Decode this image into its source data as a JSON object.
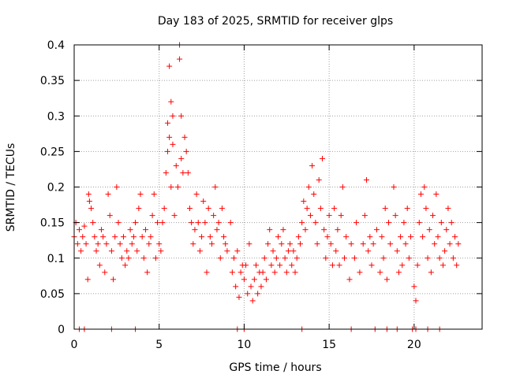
{
  "chart_data": {
    "type": "scatter",
    "title": "Day 183 of 2025, SRMTID for receiver glps",
    "xlabel": "GPS time / hours",
    "ylabel": "SRMTID / TECUs",
    "xlim": [
      0,
      24
    ],
    "ylim": [
      0,
      0.4
    ],
    "x_ticks": [
      0,
      5,
      10,
      15,
      20
    ],
    "x_tick_labels": [
      "0",
      "5",
      "10",
      "15",
      "20"
    ],
    "y_ticks": [
      0,
      0.05,
      0.1,
      0.15,
      0.2,
      0.25,
      0.3,
      0.35,
      0.4
    ],
    "y_tick_labels": [
      "0",
      "0.05",
      "0.1",
      "0.15",
      "0.2",
      "0.25",
      "0.3",
      "0.35",
      "0.4"
    ],
    "grid": true,
    "marker": "+",
    "color": "#ff0000",
    "series": [
      {
        "name": "SRMTID",
        "points": [
          [
            0.0,
            0.13
          ],
          [
            0.1,
            0.15
          ],
          [
            0.2,
            0.12
          ],
          [
            0.3,
            0.14
          ],
          [
            0.4,
            0.11
          ],
          [
            0.5,
            0.13
          ],
          [
            0.6,
            0.145
          ],
          [
            0.7,
            0.12
          ],
          [
            0.8,
            0.07
          ],
          [
            0.85,
            0.19
          ],
          [
            0.9,
            0.18
          ],
          [
            1.0,
            0.17
          ],
          [
            1.1,
            0.15
          ],
          [
            1.2,
            0.13
          ],
          [
            1.3,
            0.11
          ],
          [
            1.4,
            0.12
          ],
          [
            1.5,
            0.09
          ],
          [
            1.6,
            0.14
          ],
          [
            1.7,
            0.13
          ],
          [
            1.8,
            0.08
          ],
          [
            1.9,
            0.12
          ],
          [
            2.0,
            0.19
          ],
          [
            2.1,
            0.16
          ],
          [
            2.2,
            0.11
          ],
          [
            2.3,
            0.07
          ],
          [
            2.4,
            0.13
          ],
          [
            2.5,
            0.2
          ],
          [
            2.6,
            0.15
          ],
          [
            2.7,
            0.12
          ],
          [
            2.8,
            0.1
          ],
          [
            2.9,
            0.13
          ],
          [
            3.0,
            0.09
          ],
          [
            3.1,
            0.11
          ],
          [
            3.2,
            0.1
          ],
          [
            3.3,
            0.14
          ],
          [
            3.4,
            0.12
          ],
          [
            3.5,
            0.13
          ],
          [
            3.6,
            0.15
          ],
          [
            3.7,
            0.11
          ],
          [
            3.8,
            0.17
          ],
          [
            3.9,
            0.19
          ],
          [
            4.0,
            0.13
          ],
          [
            4.1,
            0.1
          ],
          [
            4.2,
            0.14
          ],
          [
            4.3,
            0.08
          ],
          [
            4.4,
            0.12
          ],
          [
            4.5,
            0.13
          ],
          [
            4.6,
            0.16
          ],
          [
            4.7,
            0.19
          ],
          [
            4.8,
            0.1
          ],
          [
            4.9,
            0.15
          ],
          [
            5.0,
            0.12
          ],
          [
            5.1,
            0.11
          ],
          [
            5.2,
            0.15
          ],
          [
            5.3,
            0.17
          ],
          [
            5.4,
            0.22
          ],
          [
            5.5,
            0.25
          ],
          [
            5.5,
            0.29
          ],
          [
            5.6,
            0.37
          ],
          [
            5.6,
            0.27
          ],
          [
            5.7,
            0.32
          ],
          [
            5.7,
            0.2
          ],
          [
            5.8,
            0.3
          ],
          [
            5.8,
            0.26
          ],
          [
            5.9,
            0.16
          ],
          [
            6.0,
            0.23
          ],
          [
            6.1,
            0.2
          ],
          [
            6.2,
            0.38
          ],
          [
            6.2,
            0.4
          ],
          [
            6.3,
            0.3
          ],
          [
            6.3,
            0.24
          ],
          [
            6.4,
            0.22
          ],
          [
            6.5,
            0.27
          ],
          [
            6.6,
            0.25
          ],
          [
            6.7,
            0.22
          ],
          [
            6.8,
            0.17
          ],
          [
            6.9,
            0.15
          ],
          [
            7.0,
            0.12
          ],
          [
            7.1,
            0.14
          ],
          [
            7.2,
            0.19
          ],
          [
            7.3,
            0.15
          ],
          [
            7.4,
            0.11
          ],
          [
            7.5,
            0.13
          ],
          [
            7.6,
            0.18
          ],
          [
            7.7,
            0.15
          ],
          [
            7.8,
            0.08
          ],
          [
            7.9,
            0.17
          ],
          [
            8.0,
            0.13
          ],
          [
            8.1,
            0.12
          ],
          [
            8.2,
            0.16
          ],
          [
            8.3,
            0.2
          ],
          [
            8.4,
            0.14
          ],
          [
            8.5,
            0.15
          ],
          [
            8.6,
            0.1
          ],
          [
            8.7,
            0.17
          ],
          [
            8.8,
            0.13
          ],
          [
            8.9,
            0.12
          ],
          [
            9.0,
            0.11
          ],
          [
            9.2,
            0.15
          ],
          [
            9.3,
            0.08
          ],
          [
            9.4,
            0.1
          ],
          [
            9.5,
            0.06
          ],
          [
            9.6,
            0.11
          ],
          [
            9.7,
            0.045
          ],
          [
            9.8,
            0.08
          ],
          [
            9.9,
            0.09
          ],
          [
            10.0,
            0.07
          ],
          [
            10.1,
            0.09
          ],
          [
            10.2,
            0.05
          ],
          [
            10.3,
            0.12
          ],
          [
            10.4,
            0.06
          ],
          [
            10.5,
            0.04
          ],
          [
            10.6,
            0.07
          ],
          [
            10.7,
            0.09
          ],
          [
            10.8,
            0.05
          ],
          [
            10.9,
            0.08
          ],
          [
            11.0,
            0.06
          ],
          [
            11.1,
            0.08
          ],
          [
            11.2,
            0.1
          ],
          [
            11.3,
            0.07
          ],
          [
            11.4,
            0.12
          ],
          [
            11.5,
            0.14
          ],
          [
            11.6,
            0.09
          ],
          [
            11.7,
            0.11
          ],
          [
            11.8,
            0.08
          ],
          [
            11.9,
            0.1
          ],
          [
            12.0,
            0.13
          ],
          [
            12.1,
            0.09
          ],
          [
            12.2,
            0.12
          ],
          [
            12.3,
            0.14
          ],
          [
            12.4,
            0.1
          ],
          [
            12.5,
            0.08
          ],
          [
            12.6,
            0.11
          ],
          [
            12.7,
            0.12
          ],
          [
            12.8,
            0.09
          ],
          [
            12.9,
            0.11
          ],
          [
            13.0,
            0.08
          ],
          [
            13.1,
            0.1
          ],
          [
            13.2,
            0.13
          ],
          [
            13.3,
            0.12
          ],
          [
            13.4,
            0.15
          ],
          [
            13.5,
            0.18
          ],
          [
            13.6,
            0.14
          ],
          [
            13.7,
            0.17
          ],
          [
            13.8,
            0.2
          ],
          [
            13.9,
            0.16
          ],
          [
            14.0,
            0.23
          ],
          [
            14.1,
            0.19
          ],
          [
            14.2,
            0.15
          ],
          [
            14.3,
            0.12
          ],
          [
            14.4,
            0.21
          ],
          [
            14.5,
            0.17
          ],
          [
            14.6,
            0.24
          ],
          [
            14.7,
            0.14
          ],
          [
            14.8,
            0.1
          ],
          [
            14.9,
            0.13
          ],
          [
            15.0,
            0.16
          ],
          [
            15.1,
            0.12
          ],
          [
            15.2,
            0.09
          ],
          [
            15.3,
            0.17
          ],
          [
            15.4,
            0.11
          ],
          [
            15.5,
            0.14
          ],
          [
            15.6,
            0.09
          ],
          [
            15.7,
            0.16
          ],
          [
            15.8,
            0.2
          ],
          [
            15.9,
            0.1
          ],
          [
            16.0,
            0.13
          ],
          [
            16.2,
            0.07
          ],
          [
            16.3,
            0.12
          ],
          [
            16.5,
            0.1
          ],
          [
            16.6,
            0.15
          ],
          [
            16.8,
            0.08
          ],
          [
            17.0,
            0.12
          ],
          [
            17.1,
            0.16
          ],
          [
            17.2,
            0.21
          ],
          [
            17.3,
            0.11
          ],
          [
            17.4,
            0.13
          ],
          [
            17.5,
            0.09
          ],
          [
            17.6,
            0.12
          ],
          [
            17.8,
            0.14
          ],
          [
            18.0,
            0.08
          ],
          [
            18.1,
            0.13
          ],
          [
            18.2,
            0.1
          ],
          [
            18.3,
            0.17
          ],
          [
            18.4,
            0.07
          ],
          [
            18.5,
            0.15
          ],
          [
            18.6,
            0.12
          ],
          [
            18.8,
            0.2
          ],
          [
            18.9,
            0.16
          ],
          [
            19.0,
            0.11
          ],
          [
            19.1,
            0.08
          ],
          [
            19.2,
            0.13
          ],
          [
            19.3,
            0.09
          ],
          [
            19.4,
            0.15
          ],
          [
            19.5,
            0.12
          ],
          [
            19.6,
            0.17
          ],
          [
            19.7,
            0.1
          ],
          [
            19.8,
            0.13
          ],
          [
            20.0,
            0.06
          ],
          [
            20.1,
            0.04
          ],
          [
            20.2,
            0.09
          ],
          [
            20.3,
            0.15
          ],
          [
            20.4,
            0.19
          ],
          [
            20.5,
            0.13
          ],
          [
            20.6,
            0.2
          ],
          [
            20.7,
            0.17
          ],
          [
            20.8,
            0.1
          ],
          [
            20.9,
            0.14
          ],
          [
            21.0,
            0.08
          ],
          [
            21.1,
            0.16
          ],
          [
            21.2,
            0.12
          ],
          [
            21.3,
            0.19
          ],
          [
            21.4,
            0.13
          ],
          [
            21.5,
            0.1
          ],
          [
            21.6,
            0.15
          ],
          [
            21.7,
            0.09
          ],
          [
            21.8,
            0.11
          ],
          [
            21.9,
            0.14
          ],
          [
            22.0,
            0.17
          ],
          [
            22.1,
            0.12
          ],
          [
            22.2,
            0.15
          ],
          [
            22.3,
            0.1
          ],
          [
            22.4,
            0.13
          ],
          [
            22.5,
            0.09
          ],
          [
            22.6,
            0.12
          ]
        ]
      }
    ],
    "zero_markers_x": [
      0.3,
      0.6,
      2.2,
      3.6,
      9.6,
      10.0,
      13.4,
      16.3,
      17.7,
      18.4,
      19.0,
      19.9,
      20.1,
      20.8,
      21.5
    ]
  }
}
